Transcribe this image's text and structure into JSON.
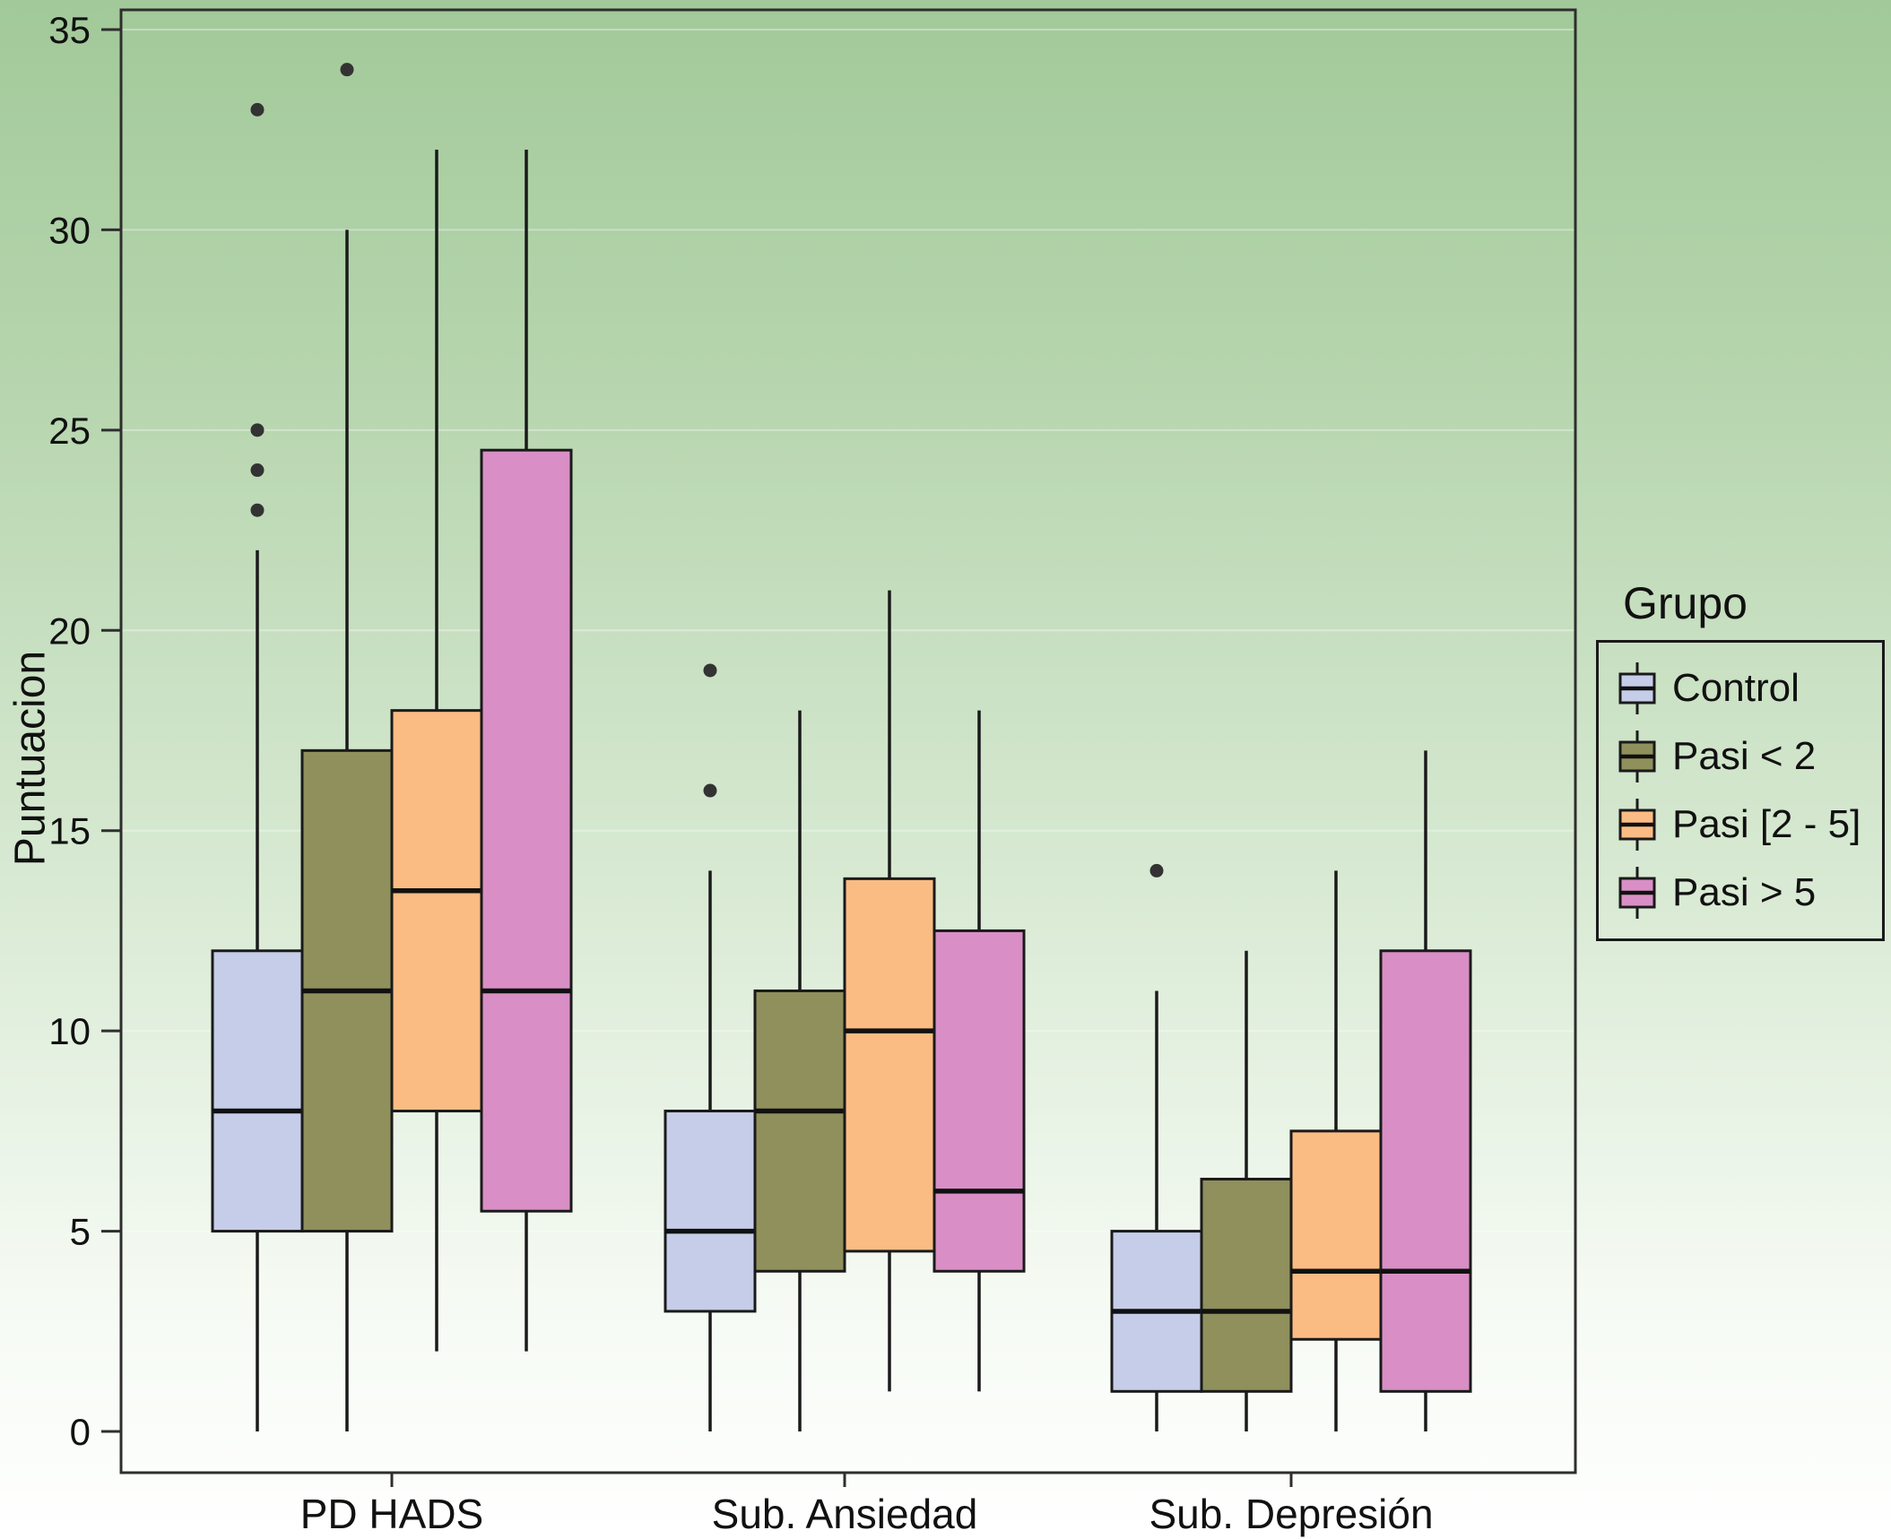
{
  "chart_data": {
    "type": "boxplot",
    "title": "",
    "ylabel": "Puntuacion",
    "ylim": [
      0,
      35
    ],
    "yticks": [
      0,
      5,
      10,
      15,
      20,
      25,
      30,
      35
    ],
    "grid": "subtle horizontal lines",
    "categories": [
      "PD HADS",
      "Sub. Ansiedad",
      "Sub. Depresión"
    ],
    "legend": {
      "title": "Grupo",
      "position": "right"
    },
    "colors": {
      "panel_border": "#2e2e2e",
      "box_outline": "#1a1a1a",
      "outlier": "#333333"
    },
    "groups": [
      {
        "name": "Control",
        "color": "#c5cde9",
        "boxes": [
          {
            "category": "PD HADS",
            "low": 0,
            "q1": 5,
            "median": 8,
            "q3": 12,
            "high": 22,
            "outliers": [
              23,
              24,
              25,
              33
            ]
          },
          {
            "category": "Sub. Ansiedad",
            "low": 0,
            "q1": 3,
            "median": 5,
            "q3": 8,
            "high": 14,
            "outliers": [
              16,
              19
            ]
          },
          {
            "category": "Sub. Depresión",
            "low": 0,
            "q1": 1,
            "median": 3,
            "q3": 5,
            "high": 11,
            "outliers": [
              14
            ]
          }
        ]
      },
      {
        "name": "Pasi < 2",
        "color": "#8f905c",
        "boxes": [
          {
            "category": "PD HADS",
            "low": 0,
            "q1": 5,
            "median": 11,
            "q3": 17,
            "high": 30,
            "outliers": [
              34
            ]
          },
          {
            "category": "Sub. Ansiedad",
            "low": 0,
            "q1": 4,
            "median": 8,
            "q3": 11,
            "high": 18,
            "outliers": []
          },
          {
            "category": "Sub. Depresión",
            "low": 0,
            "q1": 1,
            "median": 3,
            "q3": 6.3,
            "high": 12,
            "outliers": []
          }
        ]
      },
      {
        "name": "Pasi [2 - 5]",
        "color": "#fbbc84",
        "boxes": [
          {
            "category": "PD HADS",
            "low": 2,
            "q1": 8,
            "median": 13.5,
            "q3": 18,
            "high": 32,
            "outliers": []
          },
          {
            "category": "Sub. Ansiedad",
            "low": 1,
            "q1": 4.5,
            "median": 10,
            "q3": 13.8,
            "high": 21,
            "outliers": []
          },
          {
            "category": "Sub. Depresión",
            "low": 0,
            "q1": 2.3,
            "median": 4,
            "q3": 7.5,
            "high": 14,
            "outliers": []
          }
        ]
      },
      {
        "name": "Pasi > 5",
        "color": "#d98fc6",
        "boxes": [
          {
            "category": "PD HADS",
            "low": 2,
            "q1": 5.5,
            "median": 11,
            "q3": 24.5,
            "high": 32,
            "outliers": []
          },
          {
            "category": "Sub. Ansiedad",
            "low": 1,
            "q1": 4,
            "median": 6,
            "q3": 12.5,
            "high": 18,
            "outliers": []
          },
          {
            "category": "Sub. Depresión",
            "low": 0,
            "q1": 1,
            "median": 4,
            "q3": 12,
            "high": 17,
            "outliers": []
          }
        ]
      }
    ]
  }
}
